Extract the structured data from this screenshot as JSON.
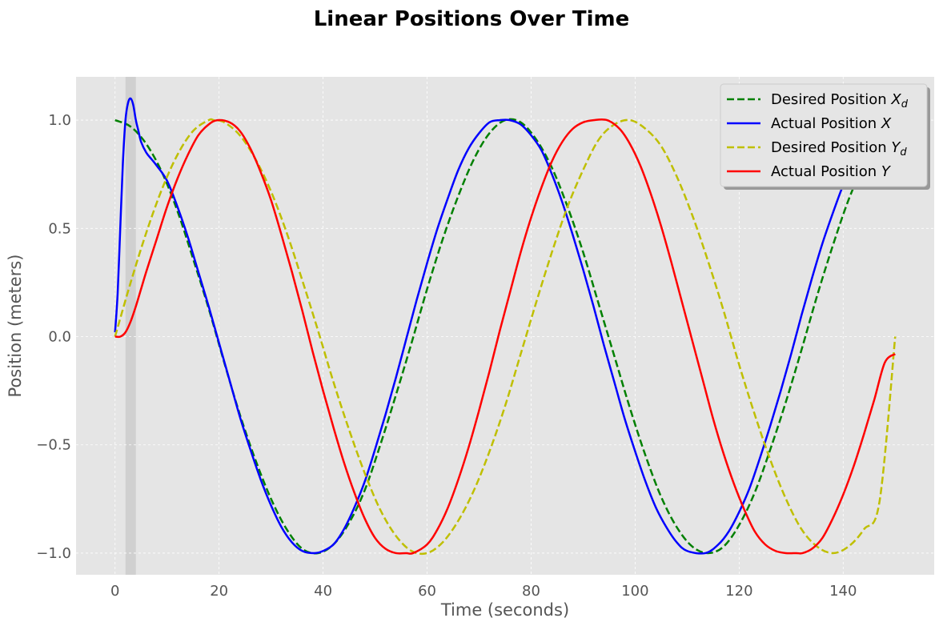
{
  "chart_data": {
    "type": "line",
    "title": "Linear Positions Over Time",
    "xlabel": "Time (seconds)",
    "ylabel": "Position (meters)",
    "xlim": [
      -7.5,
      157.5
    ],
    "ylim": [
      -1.1,
      1.2
    ],
    "xticks": [
      0,
      20,
      40,
      60,
      80,
      100,
      120,
      140
    ],
    "xtick_labels": [
      "0",
      "20",
      "40",
      "60",
      "80",
      "100",
      "120",
      "140"
    ],
    "yticks": [
      -1.0,
      -0.5,
      0.0,
      0.5,
      1.0
    ],
    "ytick_labels": [
      "−1.0",
      "−0.5",
      "0.0",
      "0.5",
      "1.0"
    ],
    "grid": true,
    "legend_position": "top-right",
    "shaded_region": {
      "x_start": 2,
      "x_end": 4,
      "color": "#d0d0d0"
    },
    "series": [
      {
        "name": "Desired Position X_d",
        "legend_main": "Desired Position ",
        "legend_var": "X",
        "legend_sub": "d",
        "color": "#008000",
        "style": "dashed",
        "x": [
          0,
          3,
          6,
          9,
          12,
          15,
          18,
          21,
          24,
          27,
          30,
          33,
          36,
          39,
          42,
          45,
          48,
          51,
          54,
          57,
          60,
          63,
          66,
          69,
          72,
          75,
          78,
          81,
          84,
          87,
          90,
          93,
          96,
          99,
          102,
          105,
          108,
          111,
          114,
          117,
          120,
          123,
          126,
          129,
          132,
          135,
          138,
          141,
          144
        ],
        "y": [
          1.0,
          0.97,
          0.89,
          0.76,
          0.58,
          0.36,
          0.13,
          -0.12,
          -0.36,
          -0.57,
          -0.75,
          -0.89,
          -0.98,
          -1.0,
          -0.96,
          -0.86,
          -0.71,
          -0.5,
          -0.27,
          -0.03,
          0.22,
          0.45,
          0.65,
          0.82,
          0.94,
          1.0,
          0.99,
          0.91,
          0.78,
          0.6,
          0.39,
          0.15,
          -0.09,
          -0.33,
          -0.55,
          -0.74,
          -0.88,
          -0.97,
          -1.0,
          -0.97,
          -0.87,
          -0.72,
          -0.52,
          -0.3,
          -0.06,
          0.19,
          0.42,
          0.63,
          0.8
        ]
      },
      {
        "name": "Actual Position X",
        "legend_main": "Actual Position ",
        "legend_var": "X",
        "legend_sub": "",
        "color": "#0000ff",
        "style": "solid",
        "x": [
          0,
          0.5,
          1,
          1.5,
          2,
          2.5,
          3,
          3.5,
          4,
          4.5,
          5,
          6,
          7,
          8,
          10,
          12,
          14,
          16,
          18,
          20,
          22,
          24,
          26,
          28,
          30,
          32,
          34,
          36,
          38.3,
          40,
          42,
          44,
          46,
          48,
          50,
          52,
          54,
          56,
          58,
          60,
          62,
          64,
          66,
          68,
          70,
          72,
          74,
          75.9,
          78,
          80,
          82,
          84,
          86,
          88,
          90,
          92,
          94,
          96,
          98,
          100,
          102,
          104,
          106,
          108,
          110,
          113.5,
          116,
          118,
          120,
          122,
          124,
          126,
          128,
          130,
          132,
          134,
          136,
          138,
          140,
          142,
          144
        ],
        "y": [
          0.02,
          0.2,
          0.5,
          0.8,
          1.0,
          1.08,
          1.1,
          1.07,
          1.0,
          0.95,
          0.9,
          0.85,
          0.82,
          0.79,
          0.72,
          0.6,
          0.46,
          0.3,
          0.14,
          -0.03,
          -0.2,
          -0.37,
          -0.52,
          -0.66,
          -0.78,
          -0.88,
          -0.95,
          -0.99,
          -1.0,
          -0.99,
          -0.96,
          -0.89,
          -0.79,
          -0.67,
          -0.52,
          -0.36,
          -0.19,
          -0.01,
          0.17,
          0.34,
          0.5,
          0.64,
          0.77,
          0.87,
          0.94,
          0.99,
          1.0,
          1.0,
          0.98,
          0.93,
          0.86,
          0.75,
          0.62,
          0.47,
          0.31,
          0.14,
          -0.04,
          -0.21,
          -0.38,
          -0.53,
          -0.67,
          -0.79,
          -0.88,
          -0.95,
          -0.99,
          -1.0,
          -0.96,
          -0.9,
          -0.81,
          -0.7,
          -0.56,
          -0.41,
          -0.25,
          -0.08,
          0.1,
          0.27,
          0.43,
          0.57,
          0.7,
          0.81,
          0.9
        ]
      },
      {
        "name": "Desired Position Y_d",
        "legend_main": "Desired Position ",
        "legend_var": "Y",
        "legend_sub": "d",
        "color": "#bfbf00",
        "style": "dashed",
        "x": [
          0,
          3,
          6,
          9,
          12,
          15,
          18,
          19,
          21,
          24,
          27,
          30,
          33,
          36,
          39,
          42,
          45,
          48,
          51,
          54,
          57,
          60,
          63,
          66,
          69,
          72,
          75,
          78,
          81,
          84,
          87,
          90,
          93,
          96,
          99,
          102,
          105,
          108,
          111,
          114,
          117,
          120,
          123,
          126,
          129,
          132,
          135,
          138,
          141,
          144,
          147,
          150
        ],
        "y": [
          0.0,
          0.25,
          0.48,
          0.68,
          0.84,
          0.95,
          1.0,
          1.0,
          0.99,
          0.93,
          0.82,
          0.67,
          0.48,
          0.26,
          0.03,
          -0.21,
          -0.43,
          -0.63,
          -0.8,
          -0.92,
          -0.99,
          -1.0,
          -0.95,
          -0.85,
          -0.71,
          -0.53,
          -0.32,
          -0.08,
          0.16,
          0.39,
          0.6,
          0.77,
          0.91,
          0.98,
          1.0,
          0.96,
          0.88,
          0.74,
          0.56,
          0.35,
          0.12,
          -0.13,
          -0.36,
          -0.57,
          -0.75,
          -0.89,
          -0.97,
          -1.0,
          -0.97,
          -0.89,
          -0.76,
          0.0
        ]
      },
      {
        "name": "Actual Position Y",
        "legend_main": "Actual Position ",
        "legend_var": "Y",
        "legend_sub": "",
        "color": "#ff0000",
        "style": "solid",
        "x": [
          0,
          1,
          2,
          3,
          4,
          5,
          6,
          8,
          10,
          12,
          14,
          16,
          18,
          19.7,
          22,
          24,
          26,
          28,
          30,
          32,
          34,
          36,
          38,
          40,
          42,
          44,
          46,
          48,
          50,
          52,
          54,
          56,
          57.3,
          60,
          62,
          64,
          66,
          68,
          70,
          72,
          74,
          76,
          78,
          80,
          82,
          84,
          86,
          88,
          90,
          92,
          94.6,
          97,
          99,
          101,
          103,
          105,
          107,
          109,
          111,
          113,
          115,
          117,
          119,
          121,
          123,
          125,
          127,
          129,
          131,
          132.2,
          134,
          136,
          138,
          140,
          142,
          144,
          146,
          148,
          150
        ],
        "y": [
          0.0,
          0.0,
          0.02,
          0.07,
          0.14,
          0.22,
          0.3,
          0.45,
          0.6,
          0.73,
          0.84,
          0.93,
          0.98,
          1.0,
          0.99,
          0.95,
          0.87,
          0.76,
          0.63,
          0.47,
          0.3,
          0.12,
          -0.07,
          -0.25,
          -0.42,
          -0.58,
          -0.72,
          -0.84,
          -0.93,
          -0.98,
          -1.0,
          -1.0,
          -1.0,
          -0.96,
          -0.89,
          -0.79,
          -0.66,
          -0.51,
          -0.34,
          -0.16,
          0.03,
          0.21,
          0.39,
          0.55,
          0.69,
          0.81,
          0.9,
          0.96,
          0.99,
          1.0,
          1.0,
          0.96,
          0.89,
          0.79,
          0.66,
          0.51,
          0.34,
          0.16,
          -0.02,
          -0.2,
          -0.38,
          -0.54,
          -0.68,
          -0.8,
          -0.9,
          -0.96,
          -0.99,
          -1.0,
          -1.0,
          -1.0,
          -0.98,
          -0.93,
          -0.84,
          -0.73,
          -0.6,
          -0.45,
          -0.29,
          -0.12,
          -0.08
        ]
      }
    ]
  }
}
